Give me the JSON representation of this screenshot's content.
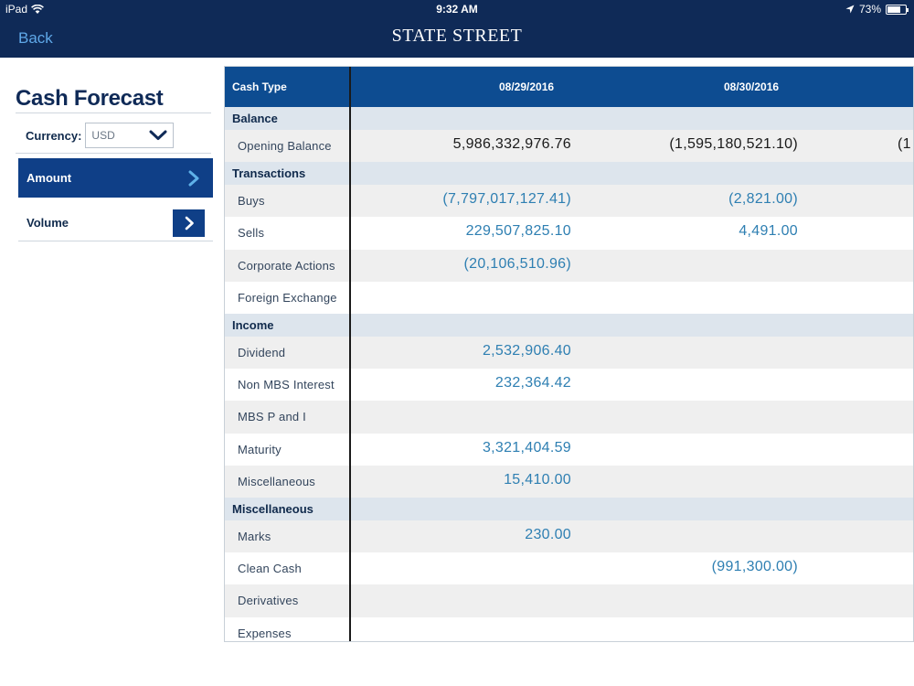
{
  "status_bar": {
    "device": "iPad",
    "time": "9:32 AM",
    "battery": "73%",
    "battery_level": 0.73
  },
  "header": {
    "back_label": "Back",
    "brand": "STATE STREET"
  },
  "sidebar": {
    "title": "Cash Forecast",
    "currency_label": "Currency:",
    "currency_value": "USD",
    "nav": [
      {
        "label": "Amount",
        "selected": true
      },
      {
        "label": "Volume",
        "selected": false
      }
    ]
  },
  "table": {
    "columns": [
      "Cash Type",
      "08/29/2016",
      "08/30/2016"
    ],
    "rows": [
      {
        "type": "section",
        "label": "Balance"
      },
      {
        "type": "item",
        "label": "Opening Balance",
        "values": [
          "5,986,332,976.76",
          "(1,595,180,521.10)",
          "(1"
        ],
        "tone": "dark"
      },
      {
        "type": "section",
        "label": "Transactions"
      },
      {
        "type": "item",
        "label": "Buys",
        "values": [
          "(7,797,017,127.41)",
          "(2,821.00)",
          ""
        ],
        "tone": "blue"
      },
      {
        "type": "item",
        "label": "Sells",
        "values": [
          "229,507,825.10",
          "4,491.00",
          ""
        ],
        "tone": "blue"
      },
      {
        "type": "item",
        "label": "Corporate Actions",
        "values": [
          "(20,106,510.96)",
          "",
          ""
        ],
        "tone": "blue"
      },
      {
        "type": "item",
        "label": "Foreign Exchange",
        "values": [
          "",
          "",
          ""
        ],
        "tone": "blue"
      },
      {
        "type": "section",
        "label": "Income"
      },
      {
        "type": "item",
        "label": "Dividend",
        "values": [
          "2,532,906.40",
          "",
          ""
        ],
        "tone": "blue"
      },
      {
        "type": "item",
        "label": "Non MBS Interest",
        "values": [
          "232,364.42",
          "",
          ""
        ],
        "tone": "blue"
      },
      {
        "type": "item",
        "label": "MBS P and I",
        "values": [
          "",
          "",
          ""
        ],
        "tone": "blue"
      },
      {
        "type": "item",
        "label": "Maturity",
        "values": [
          "3,321,404.59",
          "",
          ""
        ],
        "tone": "blue"
      },
      {
        "type": "item",
        "label": "Miscellaneous",
        "values": [
          "15,410.00",
          "",
          ""
        ],
        "tone": "blue"
      },
      {
        "type": "section",
        "label": "Miscellaneous"
      },
      {
        "type": "item",
        "label": "Marks",
        "values": [
          "230.00",
          "",
          ""
        ],
        "tone": "blue"
      },
      {
        "type": "item",
        "label": "Clean Cash",
        "values": [
          "",
          "(991,300.00)",
          ""
        ],
        "tone": "blue"
      },
      {
        "type": "item",
        "label": "Derivatives",
        "values": [
          "",
          "",
          ""
        ],
        "tone": "blue"
      },
      {
        "type": "item",
        "label": "Expenses",
        "values": [
          "",
          "",
          ""
        ],
        "tone": "blue"
      }
    ]
  },
  "colors": {
    "nav_bar": "#0f2a57",
    "table_header": "#0d4c91",
    "selected_nav": "#0f3f87",
    "value_blue": "#2e7fb2",
    "section_bg": "#dde5ed"
  }
}
